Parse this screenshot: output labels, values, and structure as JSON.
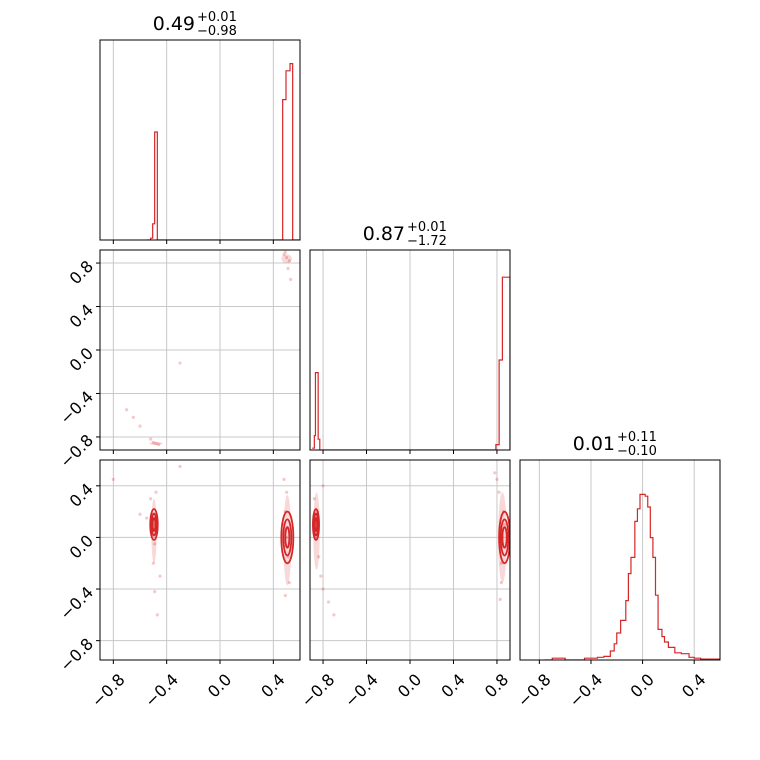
{
  "chart_data": {
    "type": "corner",
    "color": "#d62728",
    "grid": true,
    "titles": [
      {
        "value": "0.49",
        "plus": "+0.01",
        "minus": "−0.98"
      },
      {
        "value": "0.87",
        "plus": "+0.01",
        "minus": "−1.72"
      },
      {
        "value": "0.01",
        "plus": "+0.11",
        "minus": "−0.10"
      }
    ],
    "axes": [
      {
        "range": [
          -0.9,
          0.6
        ],
        "ticks": [
          -0.8,
          -0.4,
          0.0,
          0.4
        ],
        "tick_labels": [
          "−0.8",
          "−0.4",
          "0.0",
          "0.4"
        ]
      },
      {
        "range": [
          -0.92,
          0.92
        ],
        "ticks": [
          -0.8,
          -0.4,
          0.0,
          0.4,
          0.8
        ],
        "tick_labels": [
          "−0.8",
          "−0.4",
          "0.0",
          "0.4",
          "0.8"
        ]
      },
      {
        "range": [
          -0.95,
          0.6
        ],
        "ticks": [
          -0.8,
          -0.4,
          0.0,
          0.4
        ],
        "tick_labels": [
          "−0.8",
          "−0.4",
          "0.0",
          "0.4"
        ]
      }
    ],
    "histograms": [
      {
        "bins": [
          [
            -0.55,
            0.0
          ],
          [
            -0.52,
            0.01
          ],
          [
            -0.505,
            0.09
          ],
          [
            -0.49,
            0.6
          ],
          [
            -0.47,
            0.0
          ],
          [
            0.45,
            0.0
          ],
          [
            0.46,
            0.0
          ],
          [
            0.47,
            0.78
          ],
          [
            0.495,
            0.94
          ],
          [
            0.525,
            0.98
          ],
          [
            0.545,
            0.0
          ]
        ]
      },
      {
        "bins": [
          [
            -0.9,
            0.01
          ],
          [
            -0.88,
            0.08
          ],
          [
            -0.87,
            0.43
          ],
          [
            -0.845,
            0.06
          ],
          [
            -0.83,
            0.0
          ],
          [
            0.75,
            0.0
          ],
          [
            0.79,
            0.03
          ],
          [
            0.82,
            0.5
          ],
          [
            0.85,
            0.96
          ],
          [
            0.88,
            0.96
          ],
          [
            0.92,
            0.0
          ]
        ]
      },
      {
        "bins": [
          [
            -0.76,
            0.0
          ],
          [
            -0.7,
            0.01
          ],
          [
            -0.6,
            0.0
          ],
          [
            -0.5,
            0.0
          ],
          [
            -0.45,
            0.01
          ],
          [
            -0.35,
            0.015
          ],
          [
            -0.3,
            0.02
          ],
          [
            -0.25,
            0.05
          ],
          [
            -0.22,
            0.09
          ],
          [
            -0.2,
            0.15
          ],
          [
            -0.17,
            0.22
          ],
          [
            -0.13,
            0.33
          ],
          [
            -0.11,
            0.48
          ],
          [
            -0.09,
            0.57
          ],
          [
            -0.06,
            0.77
          ],
          [
            -0.04,
            0.84
          ],
          [
            -0.02,
            0.92
          ],
          [
            0.02,
            0.91
          ],
          [
            0.04,
            0.85
          ],
          [
            0.06,
            0.68
          ],
          [
            0.08,
            0.57
          ],
          [
            0.1,
            0.36
          ],
          [
            0.12,
            0.17
          ],
          [
            0.15,
            0.13
          ],
          [
            0.17,
            0.1
          ],
          [
            0.2,
            0.07
          ],
          [
            0.25,
            0.04
          ],
          [
            0.3,
            0.035
          ],
          [
            0.36,
            0.015
          ],
          [
            0.4,
            0.01
          ],
          [
            0.45,
            0.005
          ],
          [
            0.6,
            0.0
          ]
        ]
      }
    ],
    "scatter_clusters": [
      {
        "panel": "y1-x0",
        "points": [
          [
            -0.48,
            -0.86
          ],
          [
            -0.5,
            -0.85
          ],
          [
            -0.46,
            -0.87
          ],
          [
            -0.52,
            -0.82
          ],
          [
            -0.6,
            -0.7
          ],
          [
            -0.7,
            -0.55
          ],
          [
            -0.65,
            -0.62
          ],
          [
            0.5,
            0.85
          ],
          [
            0.52,
            0.82
          ],
          [
            0.48,
            0.88
          ],
          [
            0.51,
            0.75
          ],
          [
            0.53,
            0.65
          ],
          [
            0.49,
            0.9
          ],
          [
            -0.3,
            -0.12
          ]
        ]
      },
      {
        "panel": "y2-x0",
        "points": [
          [
            -0.5,
            0.1
          ],
          [
            -0.51,
            0.05
          ],
          [
            -0.49,
            -0.05
          ],
          [
            -0.5,
            -0.2
          ],
          [
            -0.52,
            0.3
          ],
          [
            -0.48,
            0.35
          ],
          [
            -0.55,
            0.15
          ],
          [
            -0.6,
            0.18
          ],
          [
            -0.45,
            -0.3
          ],
          [
            -0.49,
            -0.42
          ],
          [
            -0.47,
            -0.6
          ],
          [
            -0.8,
            0.45
          ],
          [
            0.5,
            0.0
          ],
          [
            0.49,
            0.2
          ],
          [
            0.51,
            -0.15
          ],
          [
            0.5,
            0.35
          ],
          [
            0.52,
            -0.35
          ],
          [
            0.48,
            0.45
          ],
          [
            0.49,
            -0.45
          ],
          [
            0.47,
            0.1
          ],
          [
            -0.3,
            0.55
          ]
        ]
      },
      {
        "panel": "y2-x1",
        "points": [
          [
            -0.86,
            0.1
          ],
          [
            -0.87,
            0.0
          ],
          [
            -0.85,
            0.2
          ],
          [
            -0.84,
            -0.15
          ],
          [
            -0.82,
            -0.3
          ],
          [
            -0.8,
            -0.4
          ],
          [
            -0.75,
            -0.5
          ],
          [
            -0.7,
            -0.6
          ],
          [
            -0.88,
            0.3
          ],
          [
            -0.8,
            0.4
          ],
          [
            0.85,
            0.0
          ],
          [
            0.86,
            0.2
          ],
          [
            0.84,
            -0.2
          ],
          [
            0.82,
            0.35
          ],
          [
            0.8,
            0.45
          ],
          [
            0.78,
            0.5
          ],
          [
            0.84,
            -0.35
          ],
          [
            0.83,
            -0.48
          ],
          [
            0.87,
            0.1
          ]
        ]
      }
    ],
    "contours": [
      {
        "panel": "y2-x0",
        "center": [
          -0.495,
          0.1
        ],
        "radii": [
          [
            0.01,
            0.05
          ],
          [
            0.018,
            0.085
          ],
          [
            0.028,
            0.12
          ]
        ]
      },
      {
        "panel": "y2-x0",
        "center": [
          0.505,
          0.0
        ],
        "radii": [
          [
            0.015,
            0.08
          ],
          [
            0.03,
            0.14
          ],
          [
            0.045,
            0.2
          ]
        ]
      },
      {
        "panel": "y2-x1",
        "center": [
          -0.865,
          0.1
        ],
        "radii": [
          [
            0.01,
            0.05
          ],
          [
            0.018,
            0.085
          ],
          [
            0.028,
            0.12
          ]
        ]
      },
      {
        "panel": "y2-x1",
        "center": [
          0.87,
          0.0
        ],
        "radii": [
          [
            0.02,
            0.08
          ],
          [
            0.035,
            0.14
          ],
          [
            0.05,
            0.2
          ]
        ]
      }
    ]
  }
}
